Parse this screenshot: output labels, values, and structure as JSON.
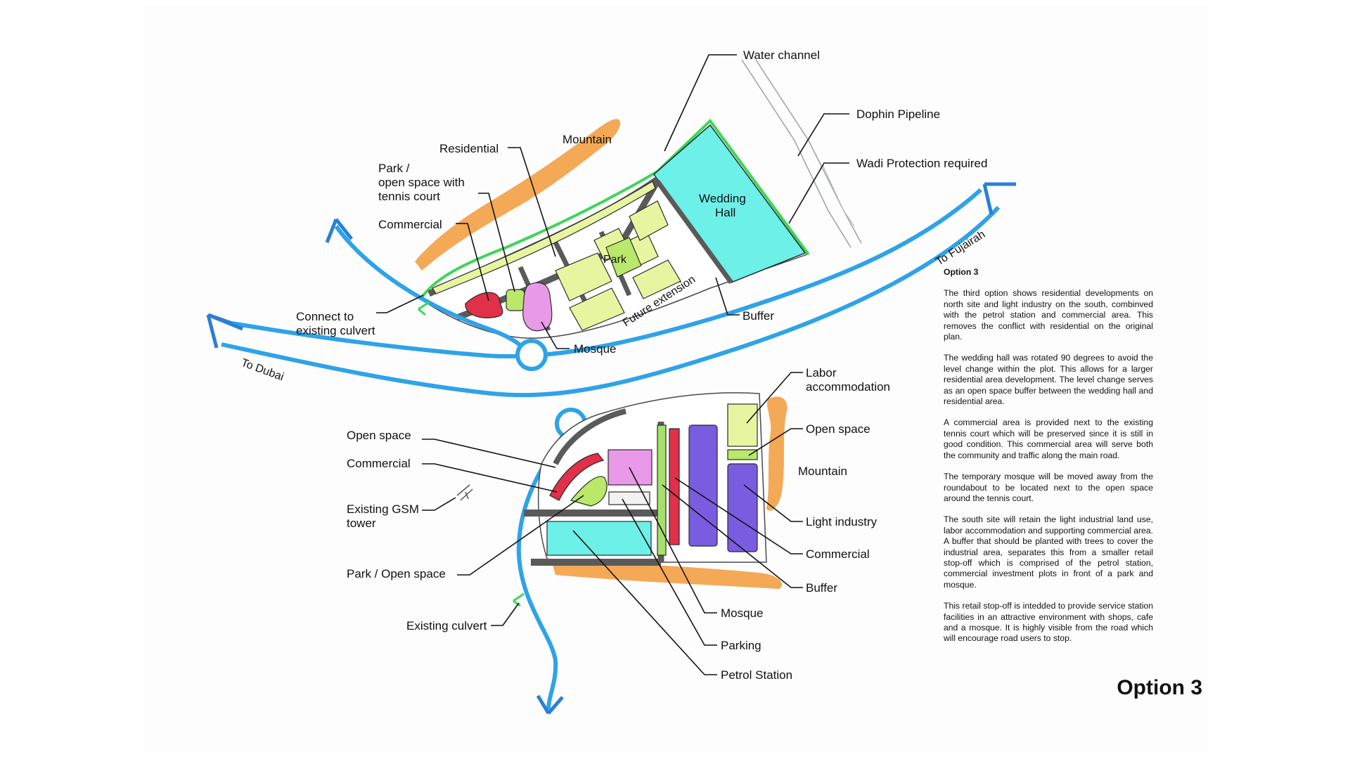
{
  "colors": {
    "road": "#2ea3e8",
    "road_arrow": "#2a7fd6",
    "mountain": "#f29a3a",
    "residential": "#e8f5a0",
    "park": "#b9e86a",
    "commercial": "#e0304a",
    "mosque": "#e89ae8",
    "wedding_hall": "#6cf0e8",
    "light_industry": "#7a5ce0",
    "buffer": "#a6e06a",
    "internal_road": "#5a5a5a",
    "wadi": "#3ed65a",
    "culvert": "#3ed65a"
  },
  "map_labels": {
    "water_channel": "Water channel",
    "dophin_pipeline": "Dophin Pipeline",
    "wadi_protection": "Wadi Protection required",
    "mountain_north": "Mountain",
    "residential": "Residential",
    "park_tennis_1": "Park /",
    "park_tennis_2": "open space with",
    "park_tennis_3": "tennis court",
    "commercial_north": "Commercial",
    "wedding_hall_1": "Wedding",
    "wedding_hall_2": "Hall",
    "park_inner": "Park",
    "future_extension": "Future extension",
    "buffer_north": "Buffer",
    "connect_culvert_1": "Connect to",
    "connect_culvert_2": "existing culvert",
    "mosque_north": "Mosque",
    "to_dubai": "To Dubai",
    "to_fujairah": "To Fujairah",
    "labor_1": "Labor",
    "labor_2": "accommodation",
    "open_space_east": "Open space",
    "mountain_south": "Mountain",
    "light_industry": "Light industry",
    "commercial_south_east": "Commercial",
    "buffer_south": "Buffer",
    "mosque_south": "Mosque",
    "parking": "Parking",
    "petrol_station": "Petrol Station",
    "open_space_west": "Open space",
    "commercial_south_west": "Commercial",
    "gsm_1": "Existing GSM",
    "gsm_2": "tower",
    "park_open_space": "Park / Open space",
    "existing_culvert": "Existing culvert"
  },
  "notes": {
    "heading": "Option 3",
    "paragraphs": [
      "The third option shows residential developments on north site and light industry on the south, combinved with the petrol station and commercial area. This removes the conflict with residential on the original plan.",
      "The wedding hall was rotated 90 degrees to avoid the level change within the plot.  This allows for a larger residential area development.  The level change serves as an open space buffer between the wedding hall and residential area.",
      "A commercial area is provided next to the existing tennis court which will be preserved since it is still in good condition.  This commercial area will serve both the community and traffic along the main road.",
      "The temporary mosque will be moved away from the roundabout to be located next to the open space around the tennis court.",
      "The south site will retain the light industrial land use, labor accommodation and supporting commercial area.  A buffer that should be planted with trees to cover the industrial area, separates this from a smaller retail stop-off which is comprised of the petrol station, commercial investment plots in front of a park and mosque.",
      "This retail stop-off is intedded to provide service station facilities in an attractive environment with shops, cafe and a mosque.  It is highly visible from the road which will encourage road users to stop."
    ]
  },
  "title": "Option 3"
}
